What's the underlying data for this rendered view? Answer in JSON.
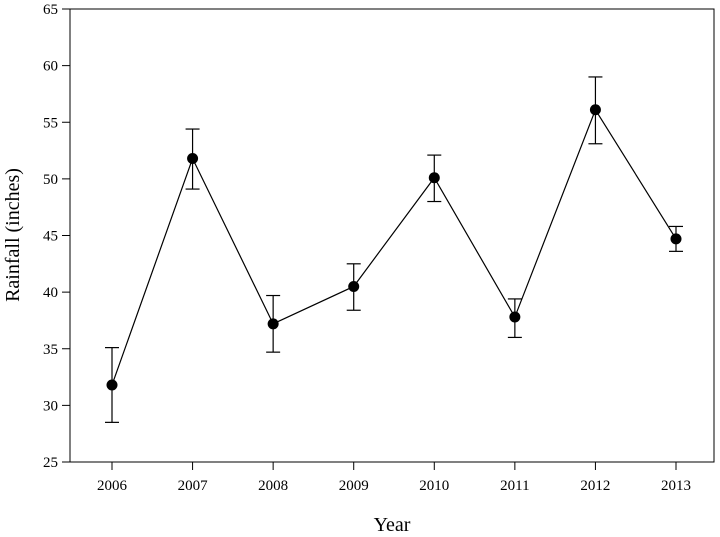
{
  "chart_data": {
    "type": "line",
    "title": "",
    "xlabel": "Year",
    "ylabel": "Rainfall (inches)",
    "ylim": [
      25,
      65
    ],
    "y_ticks": [
      25,
      30,
      35,
      40,
      45,
      50,
      55,
      60,
      65
    ],
    "categories": [
      "2006",
      "2007",
      "2008",
      "2009",
      "2010",
      "2011",
      "2012",
      "2013"
    ],
    "series": [
      {
        "values": [
          31.8,
          51.8,
          37.2,
          40.5,
          50.1,
          37.8,
          56.1,
          44.7
        ],
        "error_low": [
          28.5,
          49.1,
          34.7,
          38.4,
          48.0,
          36.0,
          53.1,
          43.6
        ],
        "error_high": [
          35.1,
          54.4,
          39.7,
          42.5,
          52.1,
          39.4,
          59.0,
          45.8
        ],
        "color": "#000000",
        "marker": "filled-circle"
      }
    ],
    "grid": false,
    "legend": "none"
  }
}
